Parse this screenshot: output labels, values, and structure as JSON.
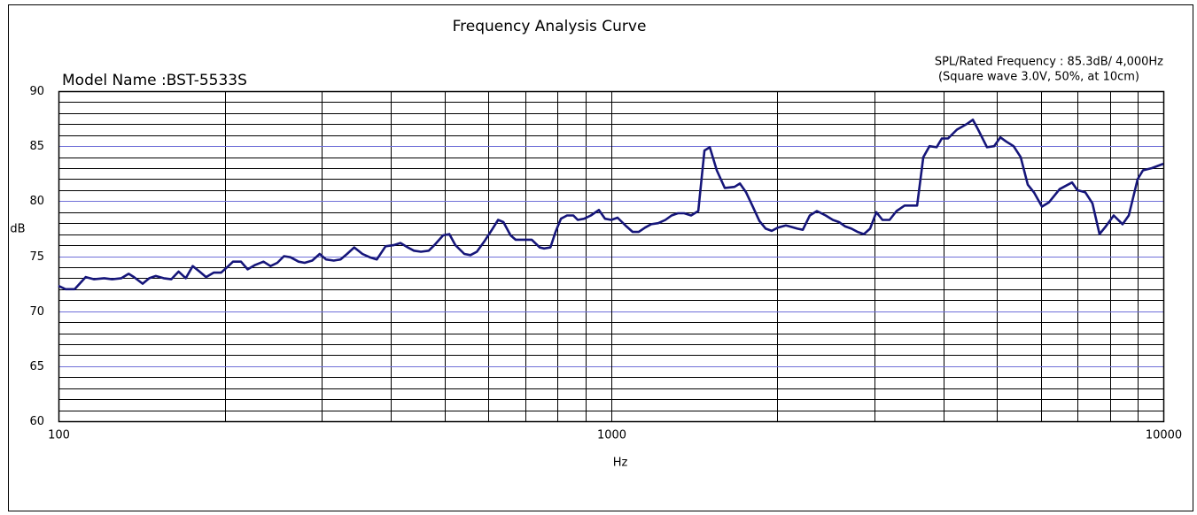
{
  "chart_data": {
    "type": "line",
    "title": "Frequency Analysis Curve",
    "model_name": "Model Name :BST-5533S",
    "rated_note": "SPL/Rated Frequency : 85.3dB/ 4,000Hz",
    "condition_note": "(Square wave 3.0V, 50%, at 10cm)",
    "xlabel": "Hz",
    "ylabel": "dB",
    "xscale": "log",
    "xlim": [
      100,
      10000
    ],
    "ylim": [
      60,
      90
    ],
    "xticks": [
      100,
      1000,
      10000
    ],
    "yticks": [
      60,
      65,
      70,
      75,
      80,
      85,
      90
    ],
    "x_minor_ticks": [
      200,
      300,
      400,
      500,
      600,
      700,
      800,
      900,
      2000,
      3000,
      4000,
      5000,
      6000,
      7000,
      8000,
      9000
    ],
    "y_minor_ticks": [
      61,
      62,
      63,
      64,
      66,
      67,
      68,
      69,
      71,
      72,
      73,
      74,
      76,
      77,
      78,
      79,
      81,
      82,
      83,
      84,
      86,
      87,
      88,
      89
    ],
    "grid": true,
    "x": [
      100,
      103,
      107,
      112,
      116,
      121,
      125,
      130,
      134,
      137,
      142,
      146,
      150,
      155,
      160,
      165,
      170,
      175,
      180,
      185,
      191,
      197,
      202,
      207,
      214,
      220,
      227,
      235,
      242,
      249,
      256,
      263,
      272,
      279,
      288,
      297,
      305,
      315,
      324,
      333,
      343,
      355,
      366,
      377,
      391,
      404,
      416,
      429,
      440,
      453,
      468,
      479,
      497,
      510,
      523,
      543,
      557,
      572,
      591,
      609,
      625,
      639,
      658,
      672,
      719,
      743,
      757,
      777,
      794,
      812,
      833,
      855,
      871,
      894,
      920,
      951,
      976,
      1002,
      1028,
      1067,
      1095,
      1123,
      1153,
      1183,
      1218,
      1255,
      1288,
      1322,
      1357,
      1397,
      1439,
      1477,
      1510,
      1555,
      1607,
      1674,
      1712,
      1757,
      1803,
      1857,
      1906,
      1955,
      2006,
      2074,
      2176,
      2225,
      2291,
      2360,
      2448,
      2522,
      2588,
      2656,
      2725,
      2797,
      2870,
      2945,
      3023,
      3102,
      3195,
      3289,
      3401,
      3583,
      3677,
      3773,
      3886,
      3972,
      4076,
      4230,
      4405,
      4521,
      4622,
      4795,
      4939,
      5069,
      5201,
      5358,
      5518,
      5684,
      5832,
      6030,
      6210,
      6491,
      6836,
      6989,
      7226,
      7443,
      7666,
      7866,
      8133,
      8438,
      8659,
      8985,
      9186,
      9531,
      10000
    ],
    "series": [
      {
        "name": "SPL",
        "color": "#16167a",
        "values": [
          72.3,
          72.0,
          72.0,
          73.1,
          72.9,
          73.0,
          72.9,
          73.0,
          73.4,
          73.1,
          72.5,
          73.0,
          73.2,
          73.0,
          72.9,
          73.6,
          73.0,
          74.1,
          73.6,
          73.1,
          73.5,
          73.5,
          74.0,
          74.5,
          74.5,
          73.8,
          74.2,
          74.5,
          74.1,
          74.4,
          75.0,
          74.9,
          74.5,
          74.4,
          74.6,
          75.2,
          74.7,
          74.6,
          74.7,
          75.2,
          75.8,
          75.2,
          74.9,
          74.7,
          75.9,
          76.0,
          76.2,
          75.8,
          75.5,
          75.4,
          75.5,
          76.0,
          76.9,
          77.0,
          76.0,
          75.2,
          75.1,
          75.4,
          76.4,
          77.4,
          78.3,
          78.1,
          76.9,
          76.5,
          76.5,
          75.8,
          75.7,
          75.8,
          77.2,
          78.4,
          78.7,
          78.7,
          78.3,
          78.4,
          78.7,
          79.2,
          78.4,
          78.3,
          78.5,
          77.7,
          77.2,
          77.2,
          77.6,
          77.9,
          78.0,
          78.3,
          78.7,
          78.9,
          78.9,
          78.7,
          79.1,
          84.6,
          84.9,
          82.8,
          81.2,
          81.3,
          81.6,
          80.8,
          79.6,
          78.2,
          77.5,
          77.3,
          77.6,
          77.8,
          77.5,
          77.4,
          78.7,
          79.1,
          78.7,
          78.3,
          78.1,
          77.7,
          77.5,
          77.2,
          77.0,
          77.5,
          79.0,
          78.3,
          78.3,
          79.1,
          79.6,
          79.6,
          84.0,
          85.0,
          84.9,
          85.7,
          85.7,
          86.5,
          87.0,
          87.4,
          86.5,
          84.9,
          85.0,
          85.8,
          85.4,
          85.0,
          84.0,
          81.5,
          80.8,
          79.5,
          79.9,
          81.1,
          81.7,
          81.0,
          80.8,
          79.8,
          77.0,
          77.7,
          78.7,
          77.9,
          78.7,
          82.0,
          82.8,
          83.0,
          83.4
        ]
      }
    ],
    "major_grid_color": "#6f6fd8",
    "minor_grid_color": "#000000"
  }
}
